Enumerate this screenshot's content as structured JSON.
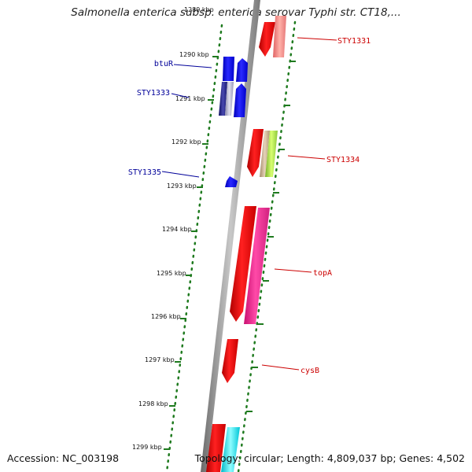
{
  "title": "Salmonella enterica subsp. enterica serovar Typhi str. CT18,...",
  "footer": {
    "accession": "Accession: NC_003198",
    "summary": "Topology: circular; Length: 4,809,037 bp; Genes: 4,502"
  },
  "colors": {
    "forward_label": "#cc0000",
    "reverse_label": "#000099",
    "tick_dots": "#1e7a1e",
    "backbone": "#8a8a8a"
  },
  "scale_ticks": [
    {
      "label": "1289 kbp"
    },
    {
      "label": "1290 kbp"
    },
    {
      "label": "1291 kbp"
    },
    {
      "label": "1292 kbp"
    },
    {
      "label": "1293 kbp"
    },
    {
      "label": "1294 kbp"
    },
    {
      "label": "1295 kbp"
    },
    {
      "label": "1296 kbp"
    },
    {
      "label": "1297 kbp"
    },
    {
      "label": "1298 kbp"
    },
    {
      "label": "1299 kbp"
    }
  ],
  "gene_labels": [
    {
      "name": "STY1331",
      "strand": "forward"
    },
    {
      "name": "btuR",
      "strand": "reverse"
    },
    {
      "name": "STY1333",
      "strand": "reverse"
    },
    {
      "name": "STY1334",
      "strand": "forward"
    },
    {
      "name": "STY1335",
      "strand": "reverse"
    },
    {
      "name": "topA",
      "strand": "forward"
    },
    {
      "name": "cysB",
      "strand": "forward"
    }
  ]
}
